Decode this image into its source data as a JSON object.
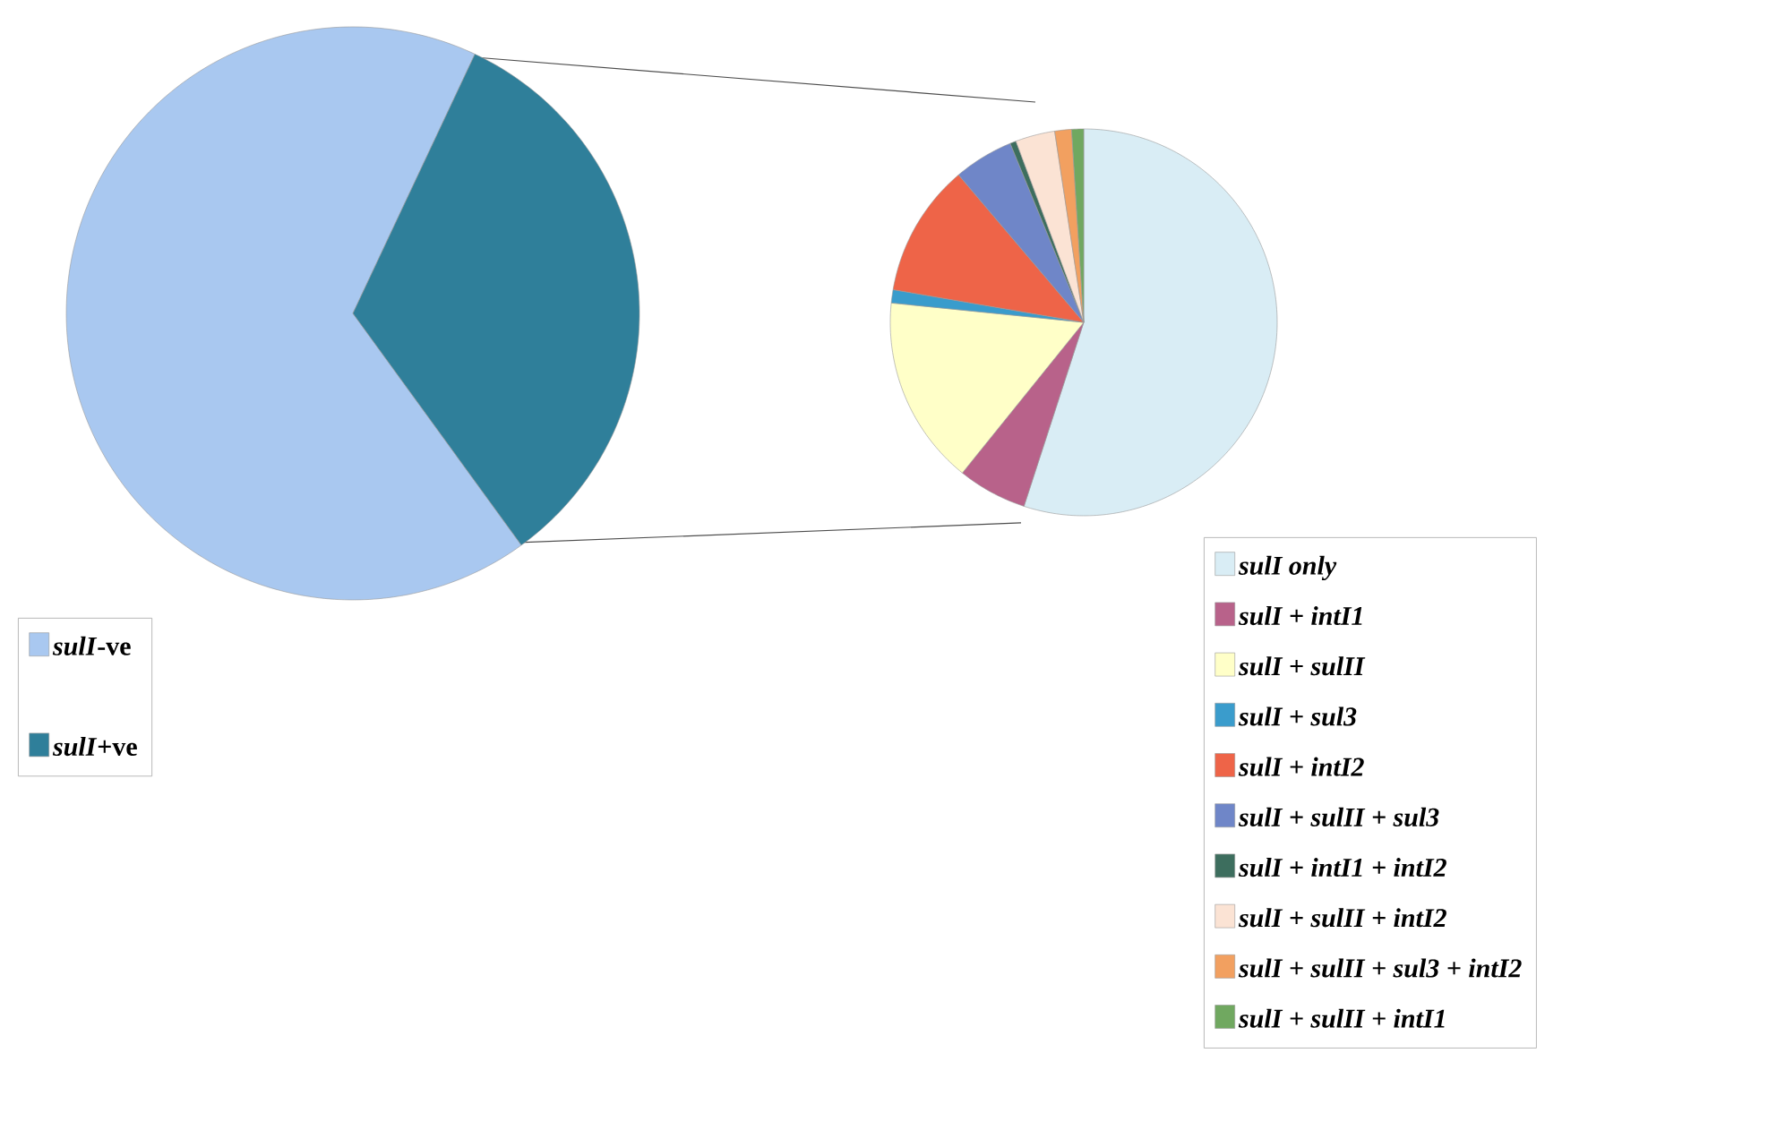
{
  "chart_data": [
    {
      "type": "pie",
      "categories": [
        "*sulI*-ve",
        "*sulI*+ve"
      ],
      "values": [
        67,
        33
      ],
      "colors": [
        "#a9c8f0",
        "#2f7f9a"
      ],
      "legend": "bottom left"
    },
    {
      "type": "pie",
      "categories": [
        "sulI only",
        "sulI + intI1",
        "sulI + sulII",
        "sulI + sul3",
        "sulI + intI2",
        "sulI + sulII + sul3",
        "sulI + intI1 + intI2",
        "sulI + sulII + intI2",
        "sulI + sulII + sul3 + intI2",
        "sulI + sulII + intI1"
      ],
      "values": [
        55.0,
        5.8,
        15.8,
        1.1,
        11.1,
        5.0,
        0.5,
        3.3,
        1.4,
        1.0
      ],
      "colors": [
        "#d9edf5",
        "#b8628a",
        "#ffffc8",
        "#3a9ccc",
        "#ee6448",
        "#6f86c8",
        "#3d6e5e",
        "#fbe3d4",
        "#f2a060",
        "#70a860"
      ],
      "legend": "bottom right"
    }
  ]
}
